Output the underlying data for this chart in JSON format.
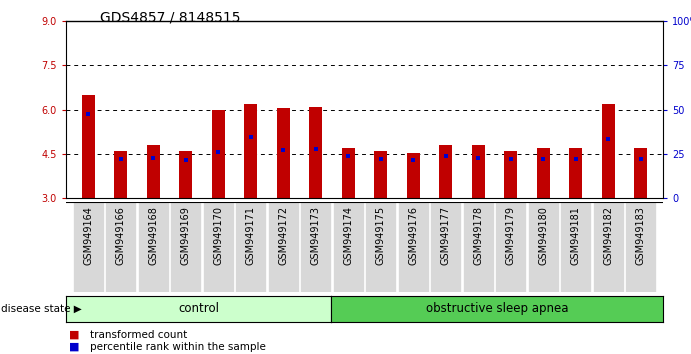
{
  "title": "GDS4857 / 8148515",
  "samples": [
    "GSM949164",
    "GSM949166",
    "GSM949168",
    "GSM949169",
    "GSM949170",
    "GSM949171",
    "GSM949172",
    "GSM949173",
    "GSM949174",
    "GSM949175",
    "GSM949176",
    "GSM949177",
    "GSM949178",
    "GSM949179",
    "GSM949180",
    "GSM949181",
    "GSM949182",
    "GSM949183"
  ],
  "bar_heights": [
    6.5,
    4.6,
    4.8,
    4.6,
    6.0,
    6.2,
    6.05,
    6.1,
    4.7,
    4.6,
    4.55,
    4.8,
    4.8,
    4.6,
    4.7,
    4.7,
    6.2,
    4.7
  ],
  "blue_dot_y": [
    5.85,
    4.33,
    4.38,
    4.3,
    4.58,
    5.08,
    4.65,
    4.68,
    4.42,
    4.33,
    4.28,
    4.42,
    4.38,
    4.33,
    4.33,
    4.33,
    5.02,
    4.33
  ],
  "bar_bottom": 3.0,
  "ylim": [
    3.0,
    9.0
  ],
  "yticks_left": [
    3,
    4.5,
    6,
    7.5,
    9
  ],
  "yticks_right": [
    0,
    25,
    50,
    75,
    100
  ],
  "bar_color": "#c00000",
  "blue_color": "#0000cc",
  "dot_size": 12,
  "grid_values": [
    4.5,
    6.0,
    7.5
  ],
  "control_samples": 8,
  "control_label": "control",
  "disease_label": "obstructive sleep apnea",
  "control_color": "#ccffcc",
  "disease_color": "#55cc55",
  "legend_red": "transformed count",
  "legend_blue": "percentile rank within the sample",
  "disease_state_label": "disease state",
  "title_fontsize": 10,
  "tick_fontsize": 7,
  "bar_width": 0.4,
  "label_bg_color": "#d8d8d8"
}
